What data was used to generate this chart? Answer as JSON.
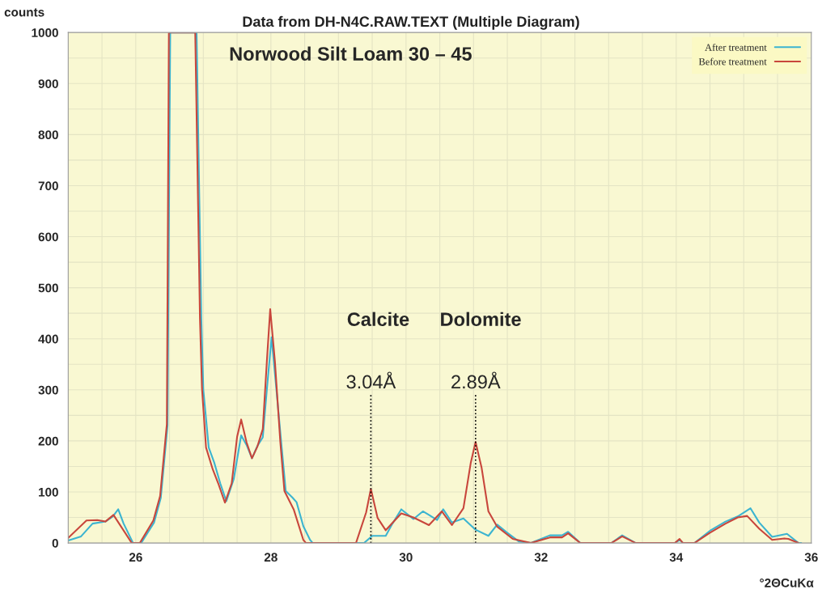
{
  "chart_data": {
    "type": "line",
    "title": "Data from DH-N4C.RAW.TEXT (Multiple Diagram)",
    "subtitle": "Norwood Silt Loam 30 – 45",
    "xlabel": "°2ΘCuKα",
    "ylabel": "counts",
    "xlim": [
      25,
      36
    ],
    "ylim": [
      0,
      1000
    ],
    "xticks": [
      {
        "value": 25.5,
        "label": null
      },
      26,
      {
        "value": 26.5,
        "label": null
      },
      {
        "value": 27,
        "label": null
      },
      {
        "value": 27.5,
        "label": null
      },
      28,
      {
        "value": 28.5,
        "label": null
      },
      {
        "value": 29,
        "label": null
      },
      {
        "value": 29.5,
        "label": null
      },
      30,
      {
        "value": 30.5,
        "label": null
      },
      {
        "value": 31,
        "label": null
      },
      {
        "value": 31.5,
        "label": null
      },
      32,
      {
        "value": 32.5,
        "label": null
      },
      {
        "value": 33,
        "label": null
      },
      {
        "value": 33.5,
        "label": null
      },
      34,
      {
        "value": 34.5,
        "label": null
      },
      {
        "value": 35,
        "label": null
      },
      {
        "value": 35.5,
        "label": null
      },
      36
    ],
    "yticks": [
      0,
      {
        "value": 50,
        "label": null
      },
      100,
      {
        "value": 150,
        "label": null
      },
      200,
      {
        "value": 250,
        "label": null
      },
      300,
      {
        "value": 350,
        "label": null
      },
      400,
      {
        "value": 450,
        "label": null
      },
      500,
      {
        "value": 550,
        "label": null
      },
      600,
      {
        "value": 650,
        "label": null
      },
      700,
      {
        "value": 750,
        "label": null
      },
      800,
      {
        "value": 850,
        "label": null
      },
      900,
      {
        "value": 950,
        "label": null
      },
      1000
    ],
    "grid": true,
    "legend": "top right",
    "marker": "none",
    "line_style": "solid",
    "series": [
      {
        "name": "After treatment",
        "color": "#3cb4d0",
        "x": [
          25.0,
          25.19,
          25.36,
          25.55,
          25.66,
          25.74,
          25.82,
          25.96,
          26.08,
          26.27,
          26.37,
          26.47,
          26.51,
          26.9,
          26.97,
          27.0,
          27.08,
          27.16,
          27.25,
          27.34,
          27.45,
          27.56,
          27.64,
          27.72,
          27.8,
          27.88,
          27.94,
          28.01,
          28.08,
          28.16,
          28.22,
          28.32,
          28.38,
          28.48,
          28.58,
          28.62,
          29.38,
          29.5,
          29.7,
          29.8,
          29.93,
          30.11,
          30.25,
          30.34,
          30.46,
          30.55,
          30.68,
          30.85,
          31.03,
          31.22,
          31.35,
          31.49,
          31.67,
          31.85,
          32.13,
          32.31,
          32.4,
          32.58,
          33.04,
          33.2,
          33.4,
          33.98,
          34.05,
          34.1,
          34.27,
          34.5,
          34.73,
          34.91,
          35.1,
          35.23,
          35.42,
          35.64,
          35.81,
          35.85
        ],
        "values": [
          5,
          13,
          38,
          42,
          52,
          66,
          38,
          0,
          0,
          40,
          88,
          230,
          1000,
          1000,
          440,
          300,
          187,
          158,
          117,
          82,
          125,
          211,
          192,
          166,
          190,
          207,
          300,
          403,
          303,
          187,
          102,
          89,
          80,
          33,
          6,
          0,
          0,
          14,
          14,
          38,
          66,
          47,
          62,
          55,
          45,
          66,
          40,
          48,
          26,
          14,
          36,
          21,
          3,
          0,
          15,
          15,
          22,
          0,
          0,
          15,
          0,
          0,
          6,
          0,
          0,
          24,
          42,
          52,
          68,
          40,
          12,
          18,
          0,
          0
        ]
      },
      {
        "name": "Before treatment",
        "color": "#c8463c",
        "x": [
          25.0,
          25.27,
          25.43,
          25.55,
          25.67,
          25.94,
          26.06,
          26.26,
          26.36,
          26.46,
          26.49,
          26.88,
          26.95,
          26.98,
          27.04,
          27.14,
          27.22,
          27.32,
          27.42,
          27.5,
          27.56,
          27.64,
          27.72,
          27.8,
          27.88,
          27.94,
          27.99,
          28.06,
          28.14,
          28.2,
          28.34,
          28.48,
          28.52,
          29.26,
          29.41,
          29.48,
          29.58,
          29.7,
          29.93,
          30.11,
          30.34,
          30.53,
          30.68,
          30.85,
          30.96,
          31.03,
          31.12,
          31.22,
          31.35,
          31.58,
          31.85,
          32.13,
          32.31,
          32.4,
          32.58,
          33.04,
          33.2,
          33.4,
          33.98,
          34.05,
          34.1,
          34.27,
          34.5,
          34.73,
          34.91,
          35.05,
          35.23,
          35.42,
          35.6,
          35.66,
          35.81
        ],
        "values": [
          10,
          44,
          45,
          42,
          55,
          0,
          0,
          44,
          92,
          233,
          1000,
          1000,
          440,
          303,
          187,
          144,
          117,
          79,
          117,
          208,
          242,
          197,
          166,
          189,
          223,
          355,
          458,
          355,
          197,
          102,
          65,
          6,
          0,
          0,
          60,
          106,
          49,
          25,
          58,
          50,
          35,
          62,
          35,
          68,
          158,
          198,
          147,
          62,
          32,
          8,
          0,
          11,
          11,
          19,
          0,
          0,
          13,
          0,
          0,
          8,
          0,
          0,
          20,
          38,
          50,
          53,
          28,
          6,
          9,
          8,
          0
        ]
      }
    ],
    "annotations": [
      "Calcite",
      "Dolomite",
      {
        "text": "3.04Å",
        "x": 29.48
      },
      {
        "text": "2.89Å",
        "x": 31.03
      }
    ]
  }
}
